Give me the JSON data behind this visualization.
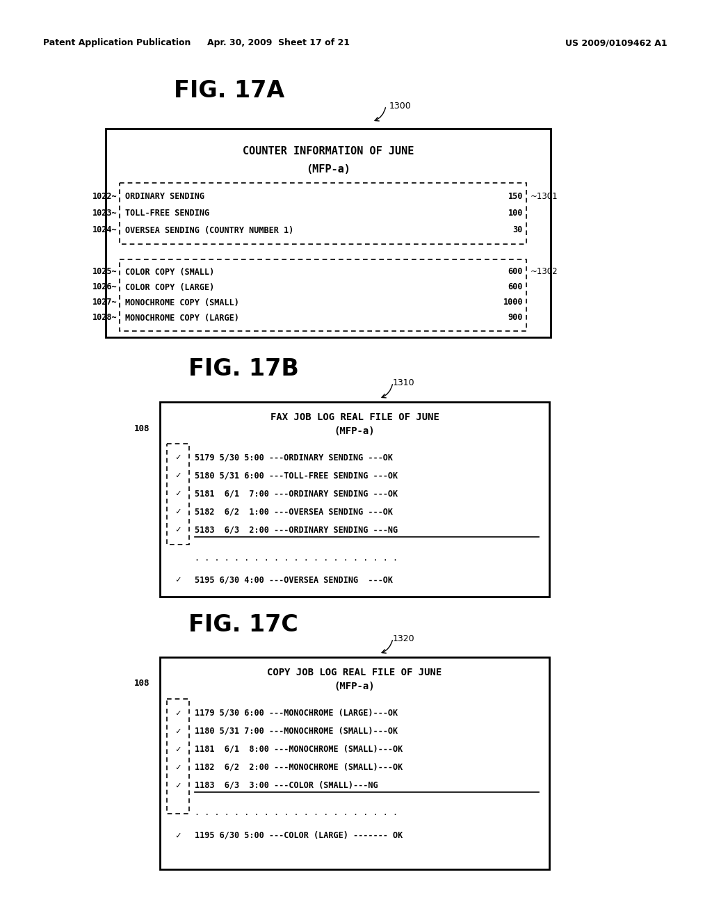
{
  "header_left": "Patent Application Publication",
  "header_mid": "Apr. 30, 2009  Sheet 17 of 21",
  "header_right": "US 2009/0109462 A1",
  "fig17a": {
    "label": "FIG. 17A",
    "ref": "1300",
    "title_line1": "COUNTER INFORMATION OF JUNE",
    "title_line2": "(MFP-a)",
    "box1_ref": "1301",
    "box1_rows": [
      [
        "1022",
        "ORDINARY SENDING",
        "150"
      ],
      [
        "1023",
        "TOLL-FREE SENDING",
        "100"
      ],
      [
        "1024",
        "OVERSEA SENDING (COUNTRY NUMBER 1)",
        "30"
      ]
    ],
    "box2_ref": "1302",
    "box2_rows": [
      [
        "1025",
        "COLOR COPY (SMALL)",
        "600"
      ],
      [
        "1026",
        "COLOR COPY (LARGE)",
        "600"
      ],
      [
        "1027",
        "MONOCHROME COPY (SMALL)",
        "1000"
      ],
      [
        "1028",
        "MONOCHROME COPY (LARGE)",
        "900"
      ]
    ]
  },
  "fig17b": {
    "label": "FIG. 17B",
    "ref": "1310",
    "side_ref": "108",
    "title_line1": "FAX JOB LOG REAL FILE OF JUNE",
    "title_line2": "(MFP-a)",
    "rows": [
      [
        true,
        "5179 5/30 5:00",
        "ORDINARY SENDING",
        "OK",
        false
      ],
      [
        true,
        "5180 5/31 6:00",
        "TOLL-FREE SENDING",
        "OK",
        false
      ],
      [
        true,
        "5181  6/1  7:00",
        "ORDINARY SENDING",
        "OK",
        false
      ],
      [
        true,
        "5182  6/2  1:00",
        "OVERSEA SENDING",
        "OK",
        false
      ],
      [
        true,
        "5183  6/3  2:00",
        "ORDINARY SENDING",
        "NG",
        true
      ]
    ],
    "last_row": [
      true,
      "5195 6/30 4:00",
      "OVERSEA SENDING",
      "OK",
      false
    ]
  },
  "fig17c": {
    "label": "FIG. 17C",
    "ref": "1320",
    "side_ref": "108",
    "title_line1": "COPY JOB LOG REAL FILE OF JUNE",
    "title_line2": "(MFP-a)",
    "rows": [
      [
        true,
        "1179 5/30 6:00",
        "MONOCHROME (LARGE)",
        "OK",
        false
      ],
      [
        true,
        "1180 5/31 7:00",
        "MONOCHROME (SMALL)",
        "OK",
        false
      ],
      [
        true,
        "1181  6/1  8:00",
        "MONOCHROME (SMALL)",
        "OK",
        false
      ],
      [
        true,
        "1182  6/2  2:00",
        "MONOCHROME (SMALL)",
        "OK",
        false
      ],
      [
        true,
        "1183  6/3  3:00",
        "COLOR (SMALL)",
        "NG",
        true
      ]
    ],
    "last_row": [
      true,
      "1195 6/30 5:00",
      "COLOR (LARGE)",
      "OK",
      false
    ]
  },
  "bg_color": "#ffffff"
}
